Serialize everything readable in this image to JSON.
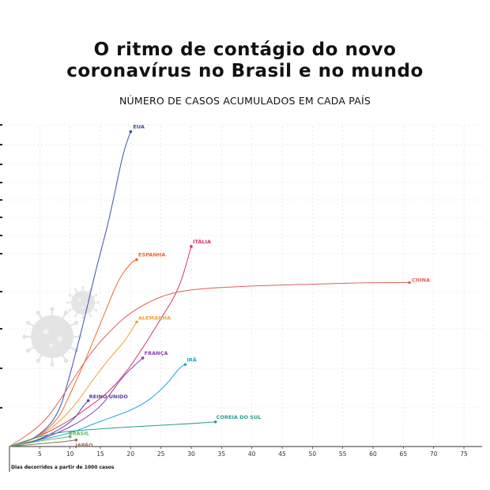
{
  "title_line1": "O ritmo de contágio do novo",
  "title_line2": "coronavírus no Brasil e no mundo",
  "subtitle": "NÚMERO DE CASOS ACUMULADOS EM CADA PAÍS",
  "chart_data": {
    "type": "line",
    "title": "O ritmo de contágio do novo coronavírus no Brasil e no mundo",
    "subtitle": "NÚMERO DE CASOS ACUMULADOS EM CADA PAÍS",
    "xlabel": "Dias decorridos a partir de 1000 casos",
    "ylabel": "",
    "xlim": [
      0,
      78
    ],
    "x_ticks": [
      5,
      10,
      15,
      20,
      25,
      30,
      35,
      40,
      45,
      50,
      55,
      60,
      65,
      70,
      75
    ],
    "y_tick_labels_visible": false,
    "grid": true,
    "series": [
      {
        "name": "EUA",
        "color": "#3b4ea8",
        "x": [
          0,
          4,
          8,
          10,
          12,
          14,
          16,
          17,
          18,
          19,
          20
        ],
        "y": [
          0.0,
          0.02,
          0.09,
          0.22,
          0.36,
          0.52,
          0.66,
          0.74,
          0.83,
          0.91,
          0.96
        ]
      },
      {
        "name": "ESPANHA",
        "color": "#ec6a2c",
        "x": [
          0,
          4,
          8,
          10,
          12,
          14,
          16,
          18,
          20,
          21
        ],
        "y": [
          0.0,
          0.02,
          0.08,
          0.16,
          0.24,
          0.33,
          0.42,
          0.51,
          0.56,
          0.57
        ]
      },
      {
        "name": "ITÁLIA",
        "color": "#d6336c",
        "x": [
          0,
          5,
          10,
          13,
          16,
          19,
          22,
          25,
          28,
          30
        ],
        "y": [
          0.0,
          0.03,
          0.08,
          0.12,
          0.16,
          0.22,
          0.3,
          0.39,
          0.48,
          0.61
        ]
      },
      {
        "name": "CHINA",
        "color": "#e0605a",
        "x": [
          0,
          5,
          8,
          11,
          14,
          17,
          20,
          25,
          30,
          40,
          50,
          60,
          66
        ],
        "y": [
          0.0,
          0.06,
          0.13,
          0.22,
          0.3,
          0.36,
          0.41,
          0.46,
          0.48,
          0.49,
          0.495,
          0.5,
          0.5
        ]
      },
      {
        "name": "ALEMANHA",
        "color": "#f2a12e",
        "x": [
          0,
          4,
          8,
          11,
          14,
          17,
          19,
          21
        ],
        "y": [
          0.0,
          0.02,
          0.07,
          0.13,
          0.21,
          0.28,
          0.32,
          0.38
        ]
      },
      {
        "name": "FRANÇA",
        "color": "#8e3fb3",
        "x": [
          0,
          5,
          9,
          12,
          15,
          17,
          19,
          22
        ],
        "y": [
          0.0,
          0.02,
          0.05,
          0.08,
          0.12,
          0.17,
          0.22,
          0.27
        ]
      },
      {
        "name": "IRÃ",
        "color": "#1aa8d8",
        "x": [
          0,
          5,
          10,
          14,
          17,
          20,
          23,
          26,
          28,
          29
        ],
        "y": [
          0.0,
          0.02,
          0.04,
          0.07,
          0.09,
          0.11,
          0.14,
          0.19,
          0.24,
          0.25
        ]
      },
      {
        "name": "REINO UNIDO",
        "color": "#5a3fa6",
        "x": [
          0,
          3,
          6,
          9,
          11,
          12,
          13
        ],
        "y": [
          0.0,
          0.01,
          0.03,
          0.06,
          0.09,
          0.12,
          0.14
        ]
      },
      {
        "name": "COREIA DO SUL",
        "color": "#2a9d8f",
        "x": [
          0,
          3,
          6,
          9,
          12,
          16,
          20,
          25,
          30,
          34
        ],
        "y": [
          0.0,
          0.02,
          0.035,
          0.045,
          0.05,
          0.055,
          0.06,
          0.065,
          0.07,
          0.075
        ]
      },
      {
        "name": "BRASIL",
        "color": "#5cb85c",
        "x": [
          0,
          3,
          6,
          8,
          10
        ],
        "y": [
          0.0,
          0.01,
          0.02,
          0.025,
          0.03
        ]
      },
      {
        "name": "JAPÃO",
        "color": "#8a6d5a",
        "x": [
          0,
          3,
          6,
          9,
          11
        ],
        "y": [
          0.0,
          0.005,
          0.01,
          0.015,
          0.02
        ]
      }
    ]
  }
}
